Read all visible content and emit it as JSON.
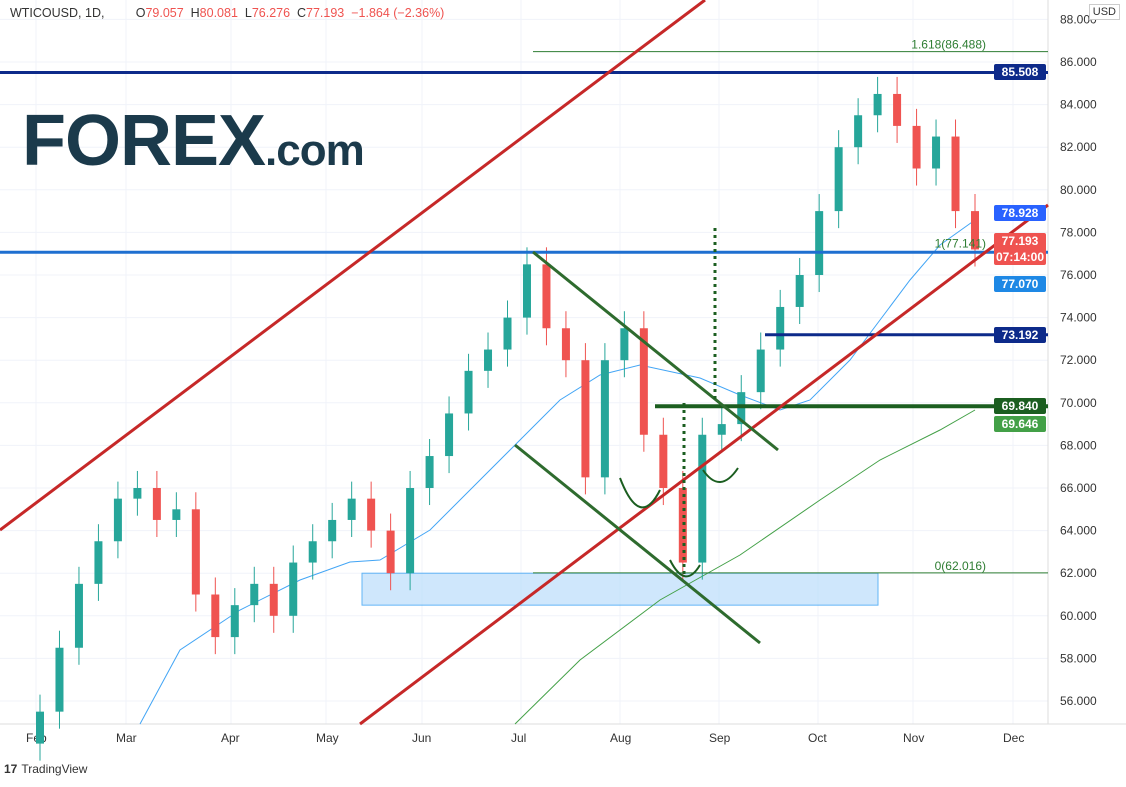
{
  "header": {
    "symbol": "WTICOUSD, 1D,",
    "open_label": "O",
    "open": "79.057",
    "high_label": "H",
    "high": "80.081",
    "low_label": "L",
    "low": "76.276",
    "close_label": "C",
    "close": "77.193",
    "change": "−1.864 (−2.36%)"
  },
  "currency_button": "USD",
  "logo": {
    "main": "FOREX",
    "suffix": ".com"
  },
  "footer": {
    "brand": "TradingView"
  },
  "price_tags": [
    {
      "value": "85.508",
      "color": "#0d2a8a"
    },
    {
      "value": "78.928",
      "color": "#2962ff"
    },
    {
      "value": "77.193",
      "sub": "07:14:00",
      "color": "#ef5350"
    },
    {
      "value": "77.070",
      "color": "#1e88e5"
    },
    {
      "value": "73.192",
      "color": "#0d2a8a"
    },
    {
      "value": "69.840",
      "color": "#1b5e20"
    },
    {
      "value": "69.646",
      "color": "#43a047"
    }
  ],
  "fib_labels": {
    "top": "1.618(86.488)",
    "mid": "1(77.141)",
    "bottom": "0(62.016)"
  },
  "chart_data": {
    "type": "candlestick",
    "title": "WTICOUSD, 1D",
    "ylim": [
      55,
      88
    ],
    "yticks": [
      "56.000",
      "58.000",
      "60.000",
      "62.000",
      "64.000",
      "66.000",
      "68.000",
      "70.000",
      "72.000",
      "74.000",
      "76.000",
      "78.000",
      "80.000",
      "82.000",
      "84.000",
      "86.000",
      "88.000"
    ],
    "xticks": [
      "Feb",
      "Mar",
      "Apr",
      "May",
      "Jun",
      "Jul",
      "Aug",
      "Sep",
      "Oct",
      "Nov",
      "Dec"
    ],
    "weekly_closes": [
      55.5,
      58.5,
      61.5,
      63.5,
      65.5,
      66,
      64.5,
      65,
      61,
      59,
      60.5,
      61.5,
      60,
      62.5,
      63.5,
      64.5,
      65.5,
      64,
      62,
      66,
      67.5,
      69.5,
      71.5,
      72.5,
      74,
      76.5,
      73.5,
      72,
      66.5,
      72,
      73.5,
      68.5,
      66,
      62.5,
      68.5,
      69,
      70.5,
      72.5,
      74.5,
      76,
      79,
      82,
      83.5,
      84.5,
      83,
      81,
      82.5,
      79,
      77.2
    ],
    "levels": [
      85.508,
      77.07,
      73.192,
      69.84,
      62.016
    ]
  }
}
